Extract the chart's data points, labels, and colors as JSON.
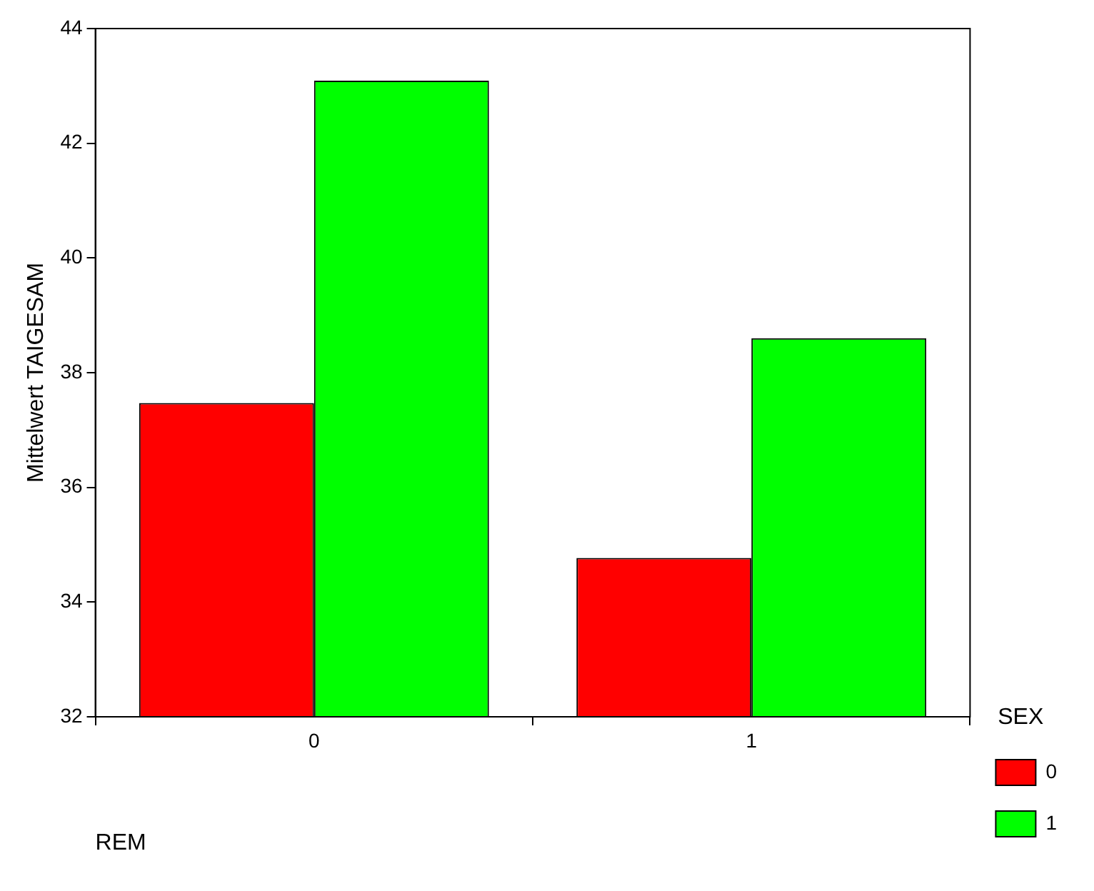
{
  "chart_data": {
    "type": "bar",
    "categories": [
      "0",
      "1"
    ],
    "xlabel": "REM",
    "ylabel": "Mittelwert TAIGESAM",
    "legend_title": "SEX",
    "series": [
      {
        "name": "0",
        "color": "#ff0000",
        "values": [
          37.47,
          34.77
        ]
      },
      {
        "name": "1",
        "color": "#00ff00",
        "values": [
          43.09,
          38.6
        ]
      }
    ],
    "ylim": [
      32,
      44
    ],
    "yticks": [
      32,
      34,
      36,
      38,
      40,
      42,
      44
    ],
    "grid": false,
    "legend": "right"
  }
}
